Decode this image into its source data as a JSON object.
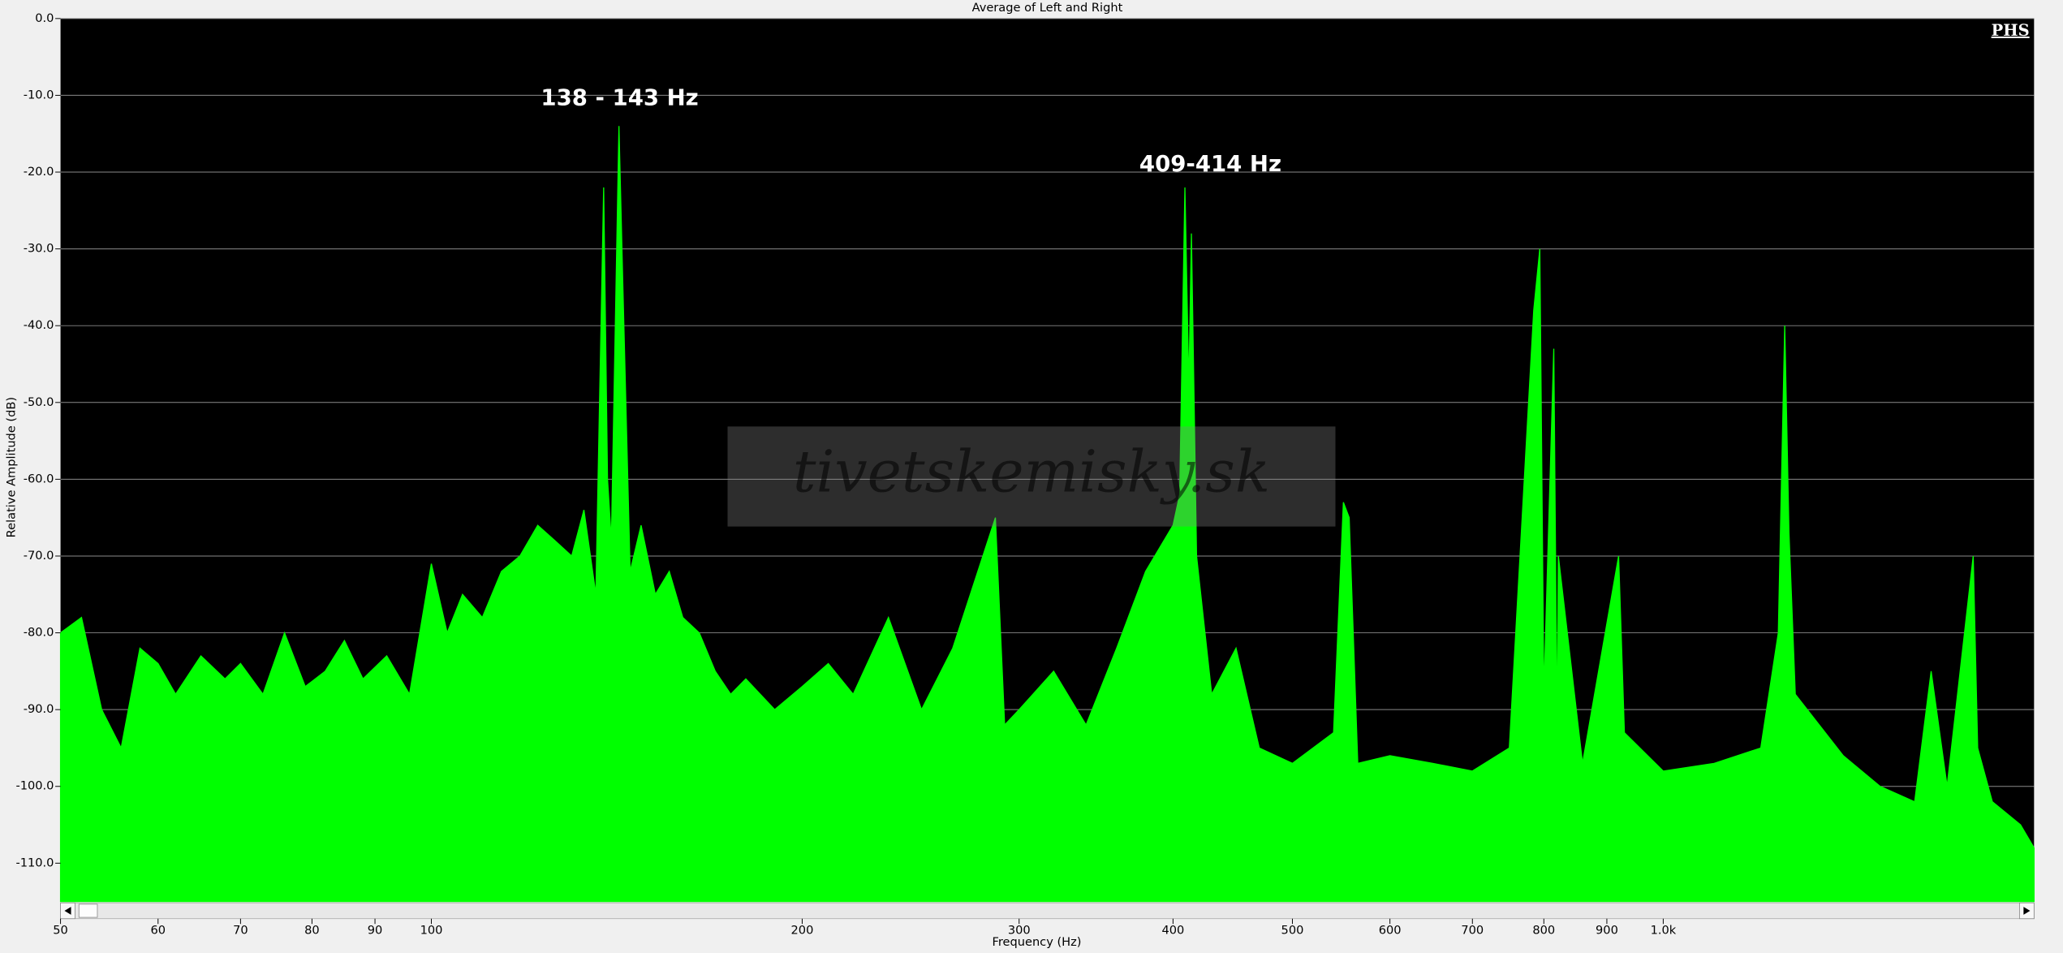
{
  "chart_data": {
    "type": "area",
    "title": "Average of Left and Right",
    "x_label": "Frequency (Hz)",
    "y_label": "Relative Amplitude (dB)",
    "annotations": [
      "138 - 143 Hz",
      "409-414 Hz"
    ],
    "logo": "PHS",
    "watermark": "tivetskemisky.sk",
    "log_x": true,
    "grid": true,
    "xlim": [
      50,
      2000
    ],
    "ylim": [
      -115,
      0
    ],
    "xticks": [
      50,
      60,
      70,
      80,
      90,
      100,
      200,
      300,
      400,
      500,
      600,
      700,
      800,
      900,
      {
        "value": 1000,
        "label": "1.0k"
      }
    ],
    "yticks": [
      {
        "value": 0,
        "label": "0.0"
      },
      {
        "value": -10,
        "label": "-10.0"
      },
      {
        "value": -20,
        "label": "-20.0"
      },
      {
        "value": -30,
        "label": "-30.0"
      },
      {
        "value": -40,
        "label": "-40.0"
      },
      {
        "value": -50,
        "label": "-50.0"
      },
      {
        "value": -60,
        "label": "-60.0"
      },
      {
        "value": -70,
        "label": "-70.0"
      },
      {
        "value": -80,
        "label": "-80.0"
      },
      {
        "value": -90,
        "label": "-90.0"
      },
      {
        "value": -100,
        "label": "-100.0"
      },
      {
        "value": -110,
        "label": "-110.0"
      }
    ],
    "x": [
      50,
      52,
      54,
      56,
      58,
      60,
      62,
      65,
      68,
      70,
      73,
      76,
      79,
      82,
      85,
      88,
      92,
      96,
      100,
      103,
      106,
      110,
      114,
      118,
      122,
      126,
      130,
      133,
      136,
      138,
      139,
      140,
      142,
      143,
      145,
      148,
      152,
      156,
      160,
      165,
      170,
      175,
      180,
      190,
      200,
      210,
      220,
      235,
      250,
      265,
      287,
      292,
      300,
      320,
      340,
      360,
      380,
      400,
      405,
      409,
      412,
      414,
      418,
      430,
      450,
      470,
      500,
      540,
      550,
      556,
      565,
      600,
      650,
      700,
      750,
      785,
      794,
      800,
      815,
      820,
      822,
      860,
      920,
      930,
      1000,
      1100,
      1200,
      1240,
      1255,
      1265,
      1280,
      1400,
      1500,
      1600,
      1650,
      1700,
      1785,
      1800,
      1850,
      1950,
      2000
    ],
    "series": [
      {
        "name": "Average",
        "color": "#00ff00",
        "values": [
          -80,
          -78,
          -90,
          -95,
          -82,
          -84,
          -88,
          -83,
          -86,
          -84,
          -88,
          -80,
          -87,
          -85,
          -81,
          -86,
          -83,
          -88,
          -71,
          -80,
          -75,
          -78,
          -72,
          -70,
          -66,
          -68,
          -70,
          -64,
          -75,
          -22,
          -60,
          -68,
          -14,
          -34,
          -72,
          -66,
          -75,
          -72,
          -78,
          -80,
          -85,
          -88,
          -86,
          -90,
          -87,
          -84,
          -88,
          -78,
          -90,
          -82,
          -65,
          -92,
          -90,
          -85,
          -92,
          -82,
          -72,
          -66,
          -62,
          -22,
          -48,
          -28,
          -70,
          -88,
          -82,
          -95,
          -97,
          -93,
          -63,
          -65,
          -97,
          -96,
          -97,
          -98,
          -95,
          -38,
          -30,
          -88,
          -43,
          -93,
          -70,
          -97,
          -70,
          -93,
          -98,
          -97,
          -95,
          -80,
          -40,
          -67,
          -88,
          -96,
          -100,
          -102,
          -85,
          -100,
          -70,
          -95,
          -102,
          -105,
          -108
        ]
      }
    ]
  }
}
